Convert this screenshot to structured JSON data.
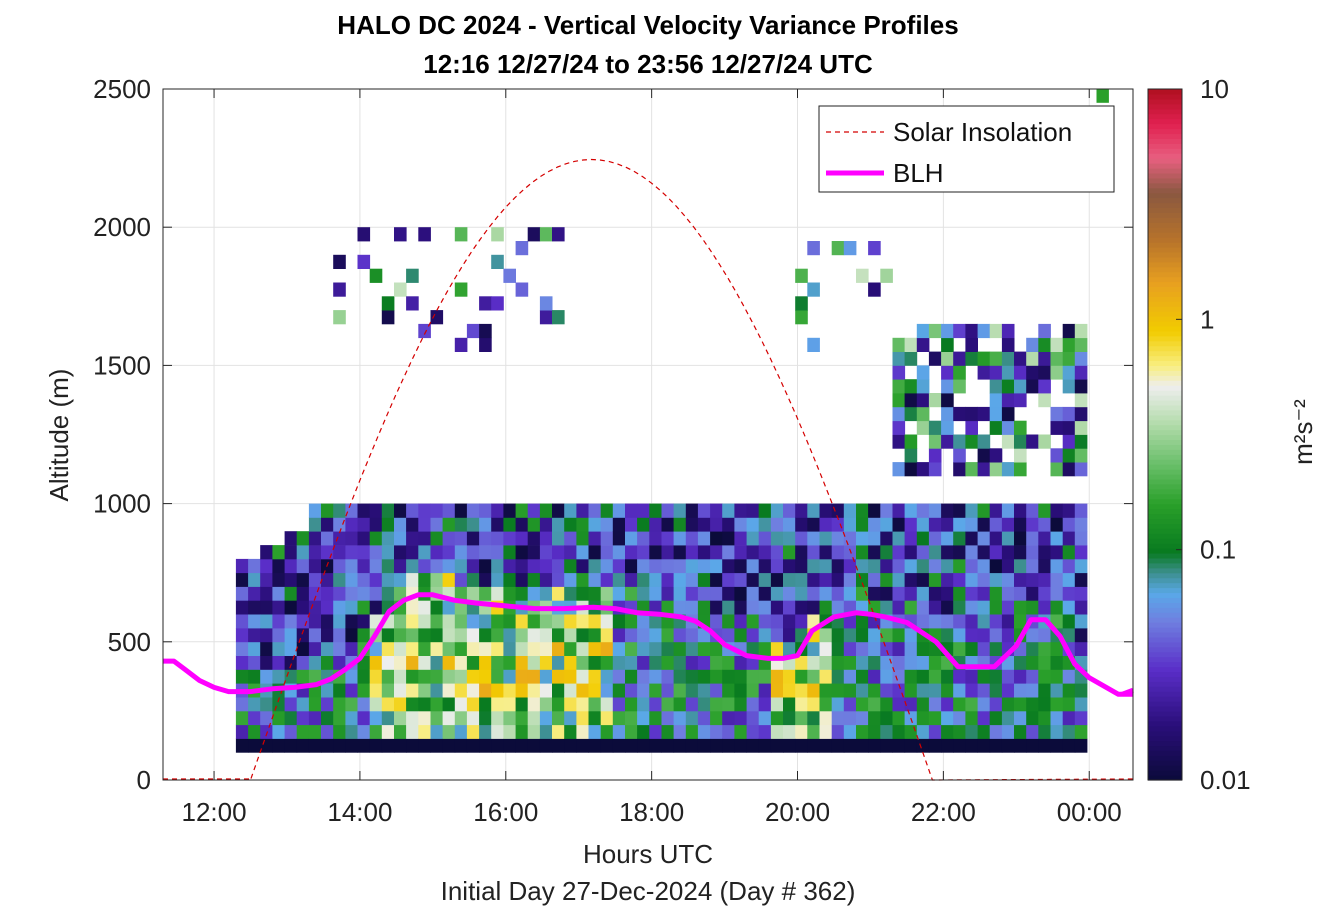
{
  "chart_data": {
    "type": "heatmap",
    "title_line1": "HALO DC 2024 - Vertical Velocity Variance Profiles",
    "title_line2": "12:16 12/27/24 to 23:56 12/27/24  UTC",
    "xlabel": "Hours UTC",
    "ylabel": "Altitude (m)",
    "subtitle": "Initial Day 27-Dec-2024 (Day # 362)",
    "colorbar_label": "m²s⁻²",
    "xlim": [
      11.3,
      24.6
    ],
    "ylim": [
      0,
      2500
    ],
    "x_ticks": [
      12,
      14,
      16,
      18,
      20,
      22,
      24
    ],
    "x_tick_labels": [
      "12:00",
      "14:00",
      "16:00",
      "18:00",
      "20:00",
      "22:00",
      "00:00"
    ],
    "y_ticks": [
      0,
      500,
      1000,
      1500,
      2000,
      2500
    ],
    "y_tick_labels": [
      "0",
      "500",
      "1000",
      "1500",
      "2000",
      "2500"
    ],
    "colorbar": {
      "scale": "log",
      "min": 0.01,
      "max": 10,
      "ticks": [
        0.01,
        0.1,
        1,
        10
      ],
      "tick_labels": [
        "0.01",
        "0.1",
        "1",
        "10"
      ],
      "colormap": [
        [
          0.0,
          "#0b0b3a"
        ],
        [
          0.08,
          "#2a0e7a"
        ],
        [
          0.16,
          "#5a2ec8"
        ],
        [
          0.23,
          "#6f7fe0"
        ],
        [
          0.27,
          "#5aa8e8"
        ],
        [
          0.3,
          "#3d8f8f"
        ],
        [
          0.33,
          "#087a20"
        ],
        [
          0.4,
          "#2aa02a"
        ],
        [
          0.46,
          "#6cc06c"
        ],
        [
          0.52,
          "#b8ddb0"
        ],
        [
          0.57,
          "#eeeeee"
        ],
        [
          0.6,
          "#f8ee80"
        ],
        [
          0.65,
          "#f2cc00"
        ],
        [
          0.72,
          "#e8a020"
        ],
        [
          0.78,
          "#b8742a"
        ],
        [
          0.85,
          "#8a5840"
        ],
        [
          0.9,
          "#e86080"
        ],
        [
          0.95,
          "#e02050"
        ],
        [
          1.0,
          "#b01020"
        ]
      ]
    },
    "grid": true,
    "legend": {
      "position": "top-right",
      "entries": [
        "Solar Insolation",
        "BLH"
      ]
    },
    "time_start": 12.3,
    "time_step": 0.1667,
    "n_columns": 70,
    "altitude_step": 50,
    "solar_insolation_max_altitude": 2245,
    "solar_insolation_range": [
      12.5,
      21.85
    ],
    "blh": {
      "x": [
        11.3,
        11.45,
        11.6,
        11.8,
        12.0,
        12.2,
        12.5,
        12.8,
        13.1,
        13.4,
        13.6,
        13.8,
        14.0,
        14.2,
        14.4,
        14.6,
        14.8,
        15.0,
        15.3,
        15.6,
        16.0,
        16.4,
        16.8,
        17.2,
        17.5,
        17.8,
        18.1,
        18.4,
        18.6,
        18.8,
        19.0,
        19.3,
        19.6,
        19.8,
        20.0,
        20.2,
        20.5,
        20.8,
        21.0,
        21.2,
        21.5,
        21.9,
        22.2,
        22.5,
        22.7,
        23.0,
        23.2,
        23.4,
        23.6,
        23.8,
        24.0,
        24.4,
        24.6
      ],
      "y": [
        430,
        430,
        400,
        360,
        335,
        320,
        320,
        330,
        335,
        345,
        365,
        400,
        440,
        520,
        610,
        650,
        670,
        670,
        650,
        640,
        630,
        620,
        620,
        625,
        620,
        605,
        600,
        590,
        575,
        540,
        490,
        450,
        440,
        440,
        450,
        540,
        590,
        605,
        600,
        590,
        570,
        500,
        410,
        410,
        410,
        485,
        580,
        580,
        520,
        420,
        370,
        310,
        310
      ]
    },
    "blh_tail": {
      "x": [
        24.45,
        24.6
      ],
      "y": [
        310,
        325
      ]
    },
    "series": [
      {
        "name": "Solar Insolation",
        "style": "dashed",
        "color": "#d40000"
      },
      {
        "name": "BLH",
        "style": "solid",
        "color": "#ff00ff"
      }
    ]
  }
}
